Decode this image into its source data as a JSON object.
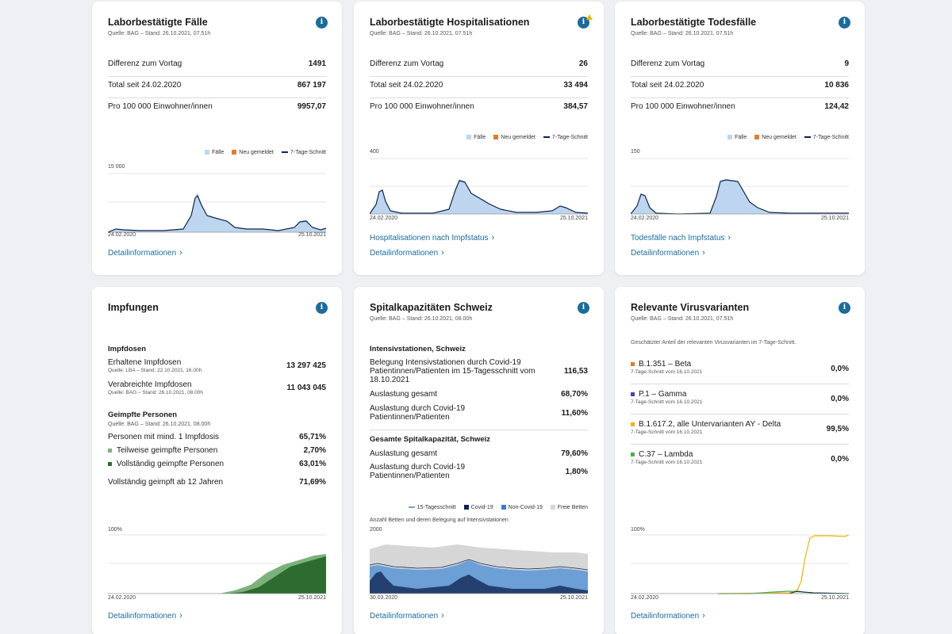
{
  "colors": {
    "accent": "#1a6c9c",
    "area": "#bdd5ee",
    "line": "#0b2454",
    "orange": "#e57b2e",
    "green_dark": "#2e6b30",
    "green_light": "#7bb27b",
    "yellow": "#f0b400"
  },
  "cards": {
    "cases": {
      "title": "Laborbestätigte Fälle",
      "source": "Quelle: BAG – Stand: 26.10.2021, 07.51h",
      "rows": [
        {
          "label": "Differenz zum Vortag",
          "value": "1491"
        },
        {
          "label": "Total seit 24.02.2020",
          "value": "867 197"
        },
        {
          "label": "Pro 100 000 Einwohner/innen",
          "value": "9957,07"
        }
      ],
      "legend": [
        "Fälle",
        "Neu gemeldet",
        "7-Tage-Schnitt"
      ],
      "y_max": "15 000",
      "x_start": "24.02.2020",
      "x_end": "25.10.2021",
      "link": "Detailinformationen"
    },
    "hosp": {
      "title": "Laborbestätigte Hospitalisationen",
      "source": "Quelle: BAG – Stand: 26.10.2021, 07.51h",
      "rows": [
        {
          "label": "Differenz zum Vortag",
          "value": "26"
        },
        {
          "label": "Total seit 24.02.2020",
          "value": "33 494"
        },
        {
          "label": "Pro 100 000 Einwohner/innen",
          "value": "384,57"
        }
      ],
      "legend": [
        "Fälle",
        "Neu gemeldet",
        "7-Tage-Schnitt"
      ],
      "y_max": "400",
      "x_start": "24.02.2020",
      "x_end": "25.10.2021",
      "link_extra": "Hospitalisationen nach Impfstatus",
      "link": "Detailinformationen"
    },
    "deaths": {
      "title": "Laborbestätigte Todesfälle",
      "source": "Quelle: BAG – Stand: 26.10.2021, 07.51h",
      "rows": [
        {
          "label": "Differenz zum Vortag",
          "value": "9"
        },
        {
          "label": "Total seit 24.02.2020",
          "value": "10 836"
        },
        {
          "label": "Pro 100 000 Einwohner/innen",
          "value": "124,42"
        }
      ],
      "legend": [
        "Fälle",
        "Neu gemeldet",
        "7-Tage-Schnitt"
      ],
      "y_max": "150",
      "x_start": "24.02.2020",
      "x_end": "25.10.2021",
      "link_extra": "Todesfälle nach Impfstatus",
      "link": "Detailinformationen"
    },
    "vacc": {
      "title": "Impfungen",
      "doses_heading": "Impfdosen",
      "received_label": "Erhaltene Impfdosen",
      "received_source": "Quelle: LBA – Stand: 22.10.2021, 16.00h",
      "received_value": "13 297 425",
      "admin_label": "Verabreichte Impfdosen",
      "admin_source": "Quelle: BAG – Stand: 26.10.2021, 08.00h",
      "admin_value": "11 043 045",
      "persons_heading": "Geimpfte Personen",
      "persons_source": "Quelle: BAG – Stand: 26.10.2021, 08.00h",
      "min1_label": "Personen mit mind. 1 Impfdosis",
      "min1_value": "65,71%",
      "partial_label": "Teilweise geimpfte Personen",
      "partial_value": "2,70%",
      "full_label": "Vollständig geimpfte Personen",
      "full_value": "63,01%",
      "full12_label": "Vollständig geimpft ab 12 Jahren",
      "full12_value": "71,69%",
      "y_max": "100%",
      "x_start": "24.02.2020",
      "x_end": "25.10.2021",
      "link": "Detailinformationen"
    },
    "hospcap": {
      "title": "Spitalkapazitäten Schweiz",
      "source": "Quelle: BAG – Stand: 26.10.2021, 08.00h",
      "icu_heading": "Intensivstationen, Schweiz",
      "icu_covid_label": "Belegung Intensivstationen durch Covid-19 Patientinnen/Patienten im 15-Tagesschnitt vom 18.10.2021",
      "icu_covid_value": "116,53",
      "icu_total_label": "Auslastung gesamt",
      "icu_total_value": "68,70%",
      "icu_c19_label": "Auslastung durch Covid-19 Patientinnen/Patienten",
      "icu_c19_value": "11,60%",
      "all_heading": "Gesamte Spitalkapazität, Schweiz",
      "all_total_label": "Auslastung gesamt",
      "all_total_value": "79,60%",
      "all_c19_label": "Auslastung durch Covid-19 Patientinnen/Patienten",
      "all_c19_value": "1,80%",
      "legend": [
        "15-Tagesschnitt",
        "Covid-19",
        "Non-Covid-19",
        "Freie Betten"
      ],
      "chart_caption": "Anzahl Betten und deren Belegung auf Intensivstationen",
      "y_max": "2000",
      "x_start": "30.03.2020",
      "x_end": "25.10.2021",
      "link": "Detailinformationen"
    },
    "variants": {
      "title": "Relevante Virusvarianten",
      "source": "Quelle: BAG – Stand: 26.10.2021, 07.51h",
      "intro": "Geschätzter Anteil der relevanten Virusvarianten im 7-Tage-Schnitt.",
      "items": [
        {
          "name": "B.1.351 – Beta",
          "sub": "7-Tage-Schnitt vom 16.10.2021",
          "value": "0,0%",
          "color": "#e57b2e"
        },
        {
          "name": "P.1 – Gamma",
          "sub": "7-Tage-Schnitt vom 16.10.2021",
          "value": "0,0%",
          "color": "#5b3aa8"
        },
        {
          "name": "B.1.617.2, alle Untervarianten AY - Delta",
          "sub": "7-Tage-Schnitt vom 16.10.2021",
          "value": "99,5%",
          "color": "#f0b400"
        },
        {
          "name": "C.37 – Lambda",
          "sub": "7-Tage-Schnitt vom 16.10.2021",
          "value": "0,0%",
          "color": "#4caf50"
        }
      ],
      "y_max": "100%",
      "x_start": "24.02.2020",
      "x_end": "25.10.2021",
      "link": "Detailinformationen"
    }
  }
}
